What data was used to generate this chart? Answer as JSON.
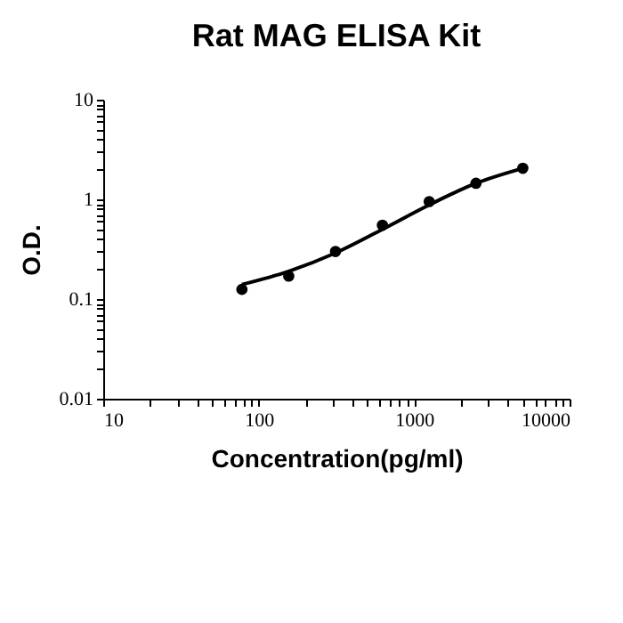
{
  "chart_data": {
    "type": "scatter",
    "title": "Rat MAG ELISA Kit",
    "xlabel": "Concentration(pg/ml)",
    "ylabel": "O.D.",
    "log": "xy",
    "grid": false,
    "marker": "circle",
    "x": [
      78,
      156,
      312,
      625,
      1250,
      2500,
      5000
    ],
    "series": [
      {
        "color": "#000000",
        "values": [
          0.125,
          0.17,
          0.3,
          0.55,
          0.95,
          1.45,
          2.05
        ]
      },
      {
        "type": "line",
        "color": "#000000",
        "line_style": "solid",
        "marker": "none",
        "x": [
          78,
          156,
          312,
          625,
          1250,
          2500,
          5000
        ],
        "values": [
          0.14,
          0.19,
          0.29,
          0.5,
          0.88,
          1.45,
          2.05
        ]
      }
    ],
    "xlim": [
      10,
      10000
    ],
    "ylim": [
      0.01,
      10
    ],
    "xticks": [
      10,
      {
        "value": 20,
        "label": null
      },
      {
        "value": 30,
        "label": null
      },
      {
        "value": 40,
        "label": null
      },
      {
        "value": 50,
        "label": null
      },
      {
        "value": 60,
        "label": null
      },
      {
        "value": 70,
        "label": null
      },
      {
        "value": 80,
        "label": null
      },
      {
        "value": 90,
        "label": null
      },
      100,
      {
        "value": 200,
        "label": null
      },
      {
        "value": 300,
        "label": null
      },
      {
        "value": 400,
        "label": null
      },
      {
        "value": 500,
        "label": null
      },
      {
        "value": 600,
        "label": null
      },
      {
        "value": 700,
        "label": null
      },
      {
        "value": 800,
        "label": null
      },
      {
        "value": 900,
        "label": null
      },
      1000,
      {
        "value": 2000,
        "label": null
      },
      {
        "value": 3000,
        "label": null
      },
      {
        "value": 4000,
        "label": null
      },
      {
        "value": 5000,
        "label": null
      },
      {
        "value": 6000,
        "label": null
      },
      {
        "value": 7000,
        "label": null
      },
      {
        "value": 8000,
        "label": null
      },
      {
        "value": 9000,
        "label": null
      },
      10000
    ],
    "yticks": [
      0.01,
      {
        "value": 0.02,
        "label": null
      },
      {
        "value": 0.03,
        "label": null
      },
      {
        "value": 0.04,
        "label": null
      },
      {
        "value": 0.05,
        "label": null
      },
      {
        "value": 0.06,
        "label": null
      },
      {
        "value": 0.07,
        "label": null
      },
      {
        "value": 0.08,
        "label": null
      },
      {
        "value": 0.09,
        "label": null
      },
      0.1,
      {
        "value": 0.2,
        "label": null
      },
      {
        "value": 0.3,
        "label": null
      },
      {
        "value": 0.4,
        "label": null
      },
      {
        "value": 0.5,
        "label": null
      },
      {
        "value": 0.6,
        "label": null
      },
      {
        "value": 0.7,
        "label": null
      },
      {
        "value": 0.8,
        "label": null
      },
      {
        "value": 0.9,
        "label": null
      },
      1,
      {
        "value": 2,
        "label": null
      },
      {
        "value": 3,
        "label": null
      },
      {
        "value": 4,
        "label": null
      },
      {
        "value": 5,
        "label": null
      },
      {
        "value": 6,
        "label": null
      },
      {
        "value": 7,
        "label": null
      },
      {
        "value": 8,
        "label": null
      },
      {
        "value": 9,
        "label": null
      },
      10
    ]
  }
}
